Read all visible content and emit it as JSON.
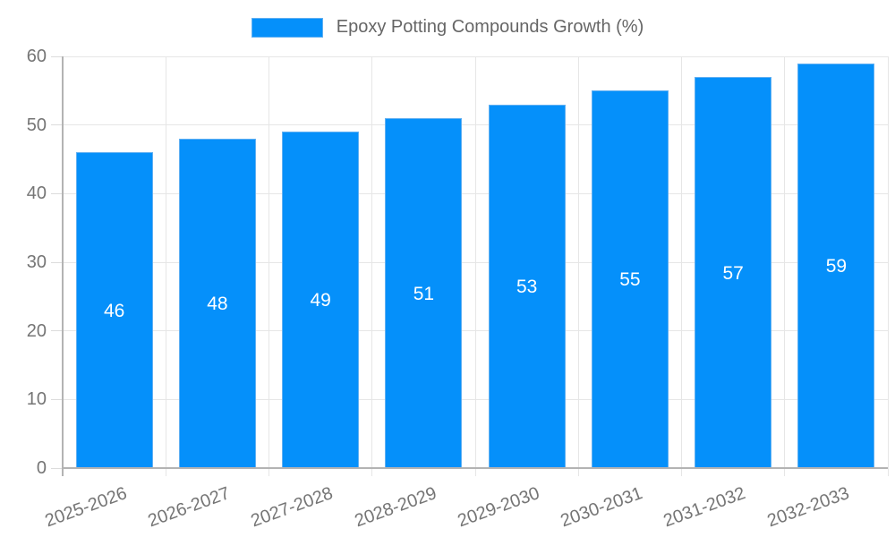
{
  "chart_data": {
    "type": "bar",
    "title": "Epoxy Potting Compounds Growth (%)",
    "legend": {
      "label": "Epoxy Potting Compounds Growth (%)",
      "position": "top-center"
    },
    "categories": [
      "2025-2026",
      "2026-2027",
      "2027-2028",
      "2028-2029",
      "2029-2030",
      "2030-2031",
      "2031-2032",
      "2032-2033"
    ],
    "values": [
      46,
      48,
      49,
      51,
      53,
      55,
      57,
      59
    ],
    "xlabel": "",
    "ylabel": "",
    "ylim": [
      0,
      60
    ],
    "yticks": [
      0,
      10,
      20,
      30,
      40,
      50,
      60
    ],
    "grid": true,
    "value_label_position": "inside-center",
    "x_label_rotation_deg": -20,
    "colors": {
      "bar_fill": "#0590fa",
      "bar_border": "#61b0f2",
      "value_label": "#ffffff",
      "axis_tick_label": "#757575",
      "legend_text": "#666666",
      "gridline": "#e6e6e6",
      "tick": "#dcdcdc",
      "axis_line": "#b3b3b3",
      "background": "#ffffff"
    }
  }
}
